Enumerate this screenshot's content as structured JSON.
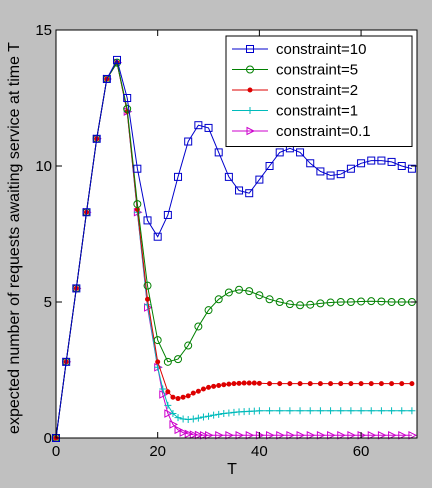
{
  "chart_data": {
    "type": "line",
    "title": "",
    "xlabel": "T",
    "ylabel": "expected number of requests awaiting service at time T",
    "xlim": [
      0,
      71
    ],
    "ylim": [
      0,
      15
    ],
    "xticks": [
      0,
      20,
      40,
      60
    ],
    "yticks": [
      0,
      5,
      10,
      15
    ],
    "grid": false,
    "legend_position": "top-right",
    "background": "#c0c0c0",
    "plot_background": "#ffffff",
    "series": [
      {
        "name": "constraint=10",
        "color": "#0000cc",
        "marker": "square",
        "x": [
          0,
          2,
          4,
          6,
          8,
          10,
          12,
          14,
          16,
          18,
          20,
          22,
          24,
          26,
          28,
          30,
          32,
          34,
          36,
          38,
          40,
          42,
          44,
          46,
          48,
          50,
          52,
          54,
          56,
          58,
          60,
          62,
          64,
          66,
          68,
          70
        ],
        "y": [
          0,
          2.8,
          5.5,
          8.3,
          11.0,
          13.2,
          13.9,
          12.5,
          9.9,
          8.0,
          7.4,
          8.2,
          9.6,
          10.9,
          11.5,
          11.4,
          10.5,
          9.6,
          9.1,
          9.0,
          9.5,
          10.0,
          10.5,
          10.65,
          10.5,
          10.1,
          9.8,
          9.65,
          9.7,
          9.9,
          10.1,
          10.2,
          10.2,
          10.15,
          10.0,
          9.9
        ]
      },
      {
        "name": "constraint=5",
        "color": "#008000",
        "marker": "circle",
        "x": [
          0,
          2,
          4,
          6,
          8,
          10,
          12,
          14,
          16,
          18,
          20,
          22,
          24,
          26,
          28,
          30,
          32,
          34,
          36,
          38,
          40,
          42,
          44,
          46,
          48,
          50,
          52,
          54,
          56,
          58,
          60,
          62,
          64,
          66,
          68,
          70
        ],
        "y": [
          0,
          2.8,
          5.5,
          8.3,
          11.0,
          13.2,
          13.8,
          12.1,
          8.6,
          5.6,
          3.6,
          2.8,
          2.9,
          3.4,
          4.1,
          4.7,
          5.1,
          5.35,
          5.45,
          5.4,
          5.25,
          5.1,
          5.0,
          4.92,
          4.88,
          4.9,
          4.95,
          4.98,
          5.0,
          5.0,
          5.02,
          5.03,
          5.02,
          5.0,
          5.0,
          5.0
        ]
      },
      {
        "name": "constraint=2",
        "color": "#dd0000",
        "marker": "point",
        "x": [
          0,
          2,
          4,
          6,
          8,
          10,
          12,
          14,
          16,
          18,
          20,
          22,
          23,
          24,
          25,
          26,
          27,
          28,
          29,
          30,
          31,
          32,
          33,
          34,
          35,
          36,
          37,
          38,
          39,
          40,
          42,
          44,
          46,
          48,
          50,
          52,
          54,
          56,
          58,
          60,
          62,
          64,
          66,
          68,
          70
        ],
        "y": [
          0,
          2.8,
          5.5,
          8.3,
          11.0,
          13.2,
          13.8,
          12.0,
          8.4,
          5.1,
          2.8,
          1.7,
          1.5,
          1.45,
          1.5,
          1.55,
          1.65,
          1.72,
          1.8,
          1.86,
          1.9,
          1.93,
          1.96,
          1.98,
          2.0,
          2.01,
          2.02,
          2.02,
          2.02,
          2.01,
          2.0,
          2.0,
          2.0,
          2.0,
          2.0,
          2.0,
          2.0,
          2.0,
          2.0,
          2.0,
          2.0,
          2.0,
          2.0,
          2.0,
          2.0
        ]
      },
      {
        "name": "constraint=1",
        "color": "#00bbbb",
        "marker": "plus",
        "x": [
          0,
          2,
          4,
          6,
          8,
          10,
          12,
          14,
          16,
          18,
          20,
          21,
          22,
          23,
          24,
          25,
          26,
          27,
          28,
          29,
          30,
          31,
          32,
          33,
          34,
          35,
          36,
          37,
          38,
          39,
          40,
          42,
          44,
          46,
          48,
          50,
          52,
          54,
          56,
          58,
          60,
          62,
          64,
          66,
          68,
          70
        ],
        "y": [
          0,
          2.8,
          5.5,
          8.3,
          11.0,
          13.2,
          13.8,
          12.0,
          8.3,
          4.9,
          2.6,
          1.8,
          1.2,
          0.9,
          0.75,
          0.7,
          0.68,
          0.7,
          0.73,
          0.77,
          0.8,
          0.84,
          0.87,
          0.9,
          0.92,
          0.94,
          0.96,
          0.97,
          0.98,
          0.99,
          1.0,
          1.0,
          1.0,
          1.0,
          1.0,
          1.0,
          1.0,
          1.0,
          1.0,
          1.0,
          1.0,
          1.0,
          1.0,
          1.0,
          1.0,
          1.0
        ]
      },
      {
        "name": "constraint=0.1",
        "color": "#cc00cc",
        "marker": "triangle-right",
        "x": [
          0,
          2,
          4,
          6,
          8,
          10,
          12,
          14,
          16,
          18,
          20,
          21,
          22,
          23,
          24,
          25,
          26,
          27,
          28,
          29,
          30,
          32,
          34,
          36,
          38,
          40,
          42,
          44,
          46,
          48,
          50,
          52,
          54,
          56,
          58,
          60,
          62,
          64,
          66,
          68,
          70
        ],
        "y": [
          0,
          2.8,
          5.5,
          8.3,
          11.0,
          13.2,
          13.8,
          12.0,
          8.3,
          4.8,
          2.6,
          1.6,
          0.9,
          0.5,
          0.3,
          0.2,
          0.15,
          0.12,
          0.11,
          0.1,
          0.1,
          0.1,
          0.1,
          0.1,
          0.1,
          0.1,
          0.1,
          0.1,
          0.1,
          0.1,
          0.1,
          0.1,
          0.1,
          0.1,
          0.1,
          0.1,
          0.1,
          0.1,
          0.1,
          0.1,
          0.1
        ]
      }
    ]
  }
}
